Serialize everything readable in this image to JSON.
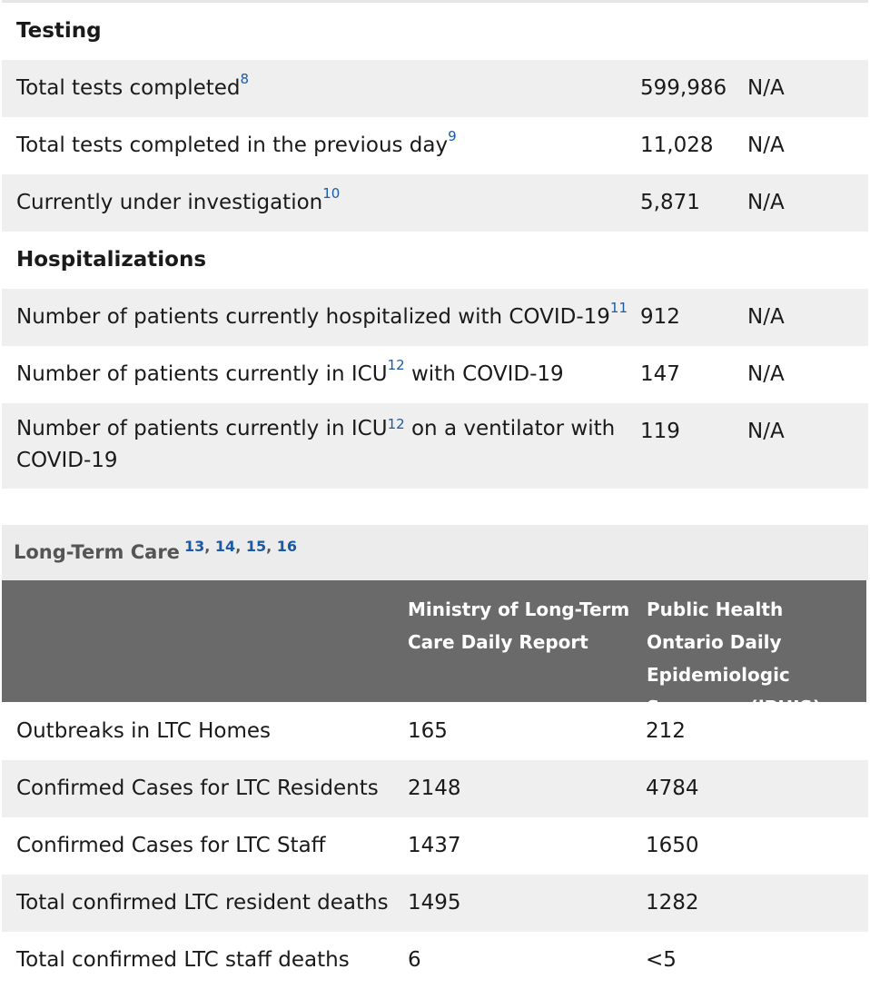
{
  "testing": {
    "heading": "Testing",
    "rows": [
      {
        "label": "Total tests completed",
        "sup": "8",
        "value1": "599,986",
        "value2": "N/A"
      },
      {
        "label": "Total tests completed in the previous day",
        "sup": "9",
        "value1": "11,028",
        "value2": "N/A"
      },
      {
        "label": "Currently under investigation",
        "sup": "10",
        "value1": "5,871",
        "value2": "N/A"
      }
    ]
  },
  "hospitalizations": {
    "heading": "Hospitalizations",
    "rows": [
      {
        "label": "Number of patients currently hospitalized with COVID-19",
        "sup": "11",
        "value1": "912",
        "value2": "N/A"
      },
      {
        "label_before": "Number of patients currently in ICU",
        "sup": "12",
        "label_after": " with COVID-19",
        "value1": "147",
        "value2": "N/A"
      },
      {
        "label_before": "Number of patients currently in ICU",
        "sup": "12",
        "label_after": " on a ventilator with COVID-19",
        "value1": "119",
        "value2": "N/A"
      }
    ]
  },
  "ltc": {
    "title": "Long-Term Care",
    "refs": [
      "13",
      "14",
      "15",
      "16"
    ],
    "col1": "Ministry of Long-Term Care Daily Report",
    "col2": "Public Health Ontario Daily Epidemiologic Summary (iPHIS)",
    "rows": [
      {
        "label": "Outbreaks in LTC Homes",
        "value1": "165",
        "value2": "212"
      },
      {
        "label": "Confirmed Cases for LTC Residents",
        "value1": "2148",
        "value2": "4784"
      },
      {
        "label": "Confirmed Cases for LTC Staff",
        "value1": "1437",
        "value2": "1650"
      },
      {
        "label": "Total confirmed LTC resident deaths",
        "value1": "1495",
        "value2": "1282"
      },
      {
        "label": "Total confirmed LTC staff deaths",
        "value1": "6",
        "value2": "<5"
      }
    ]
  },
  "colors": {
    "link": "#1a5aa6",
    "header_bg": "#6a6a6a",
    "row_shade": "#efefef"
  }
}
